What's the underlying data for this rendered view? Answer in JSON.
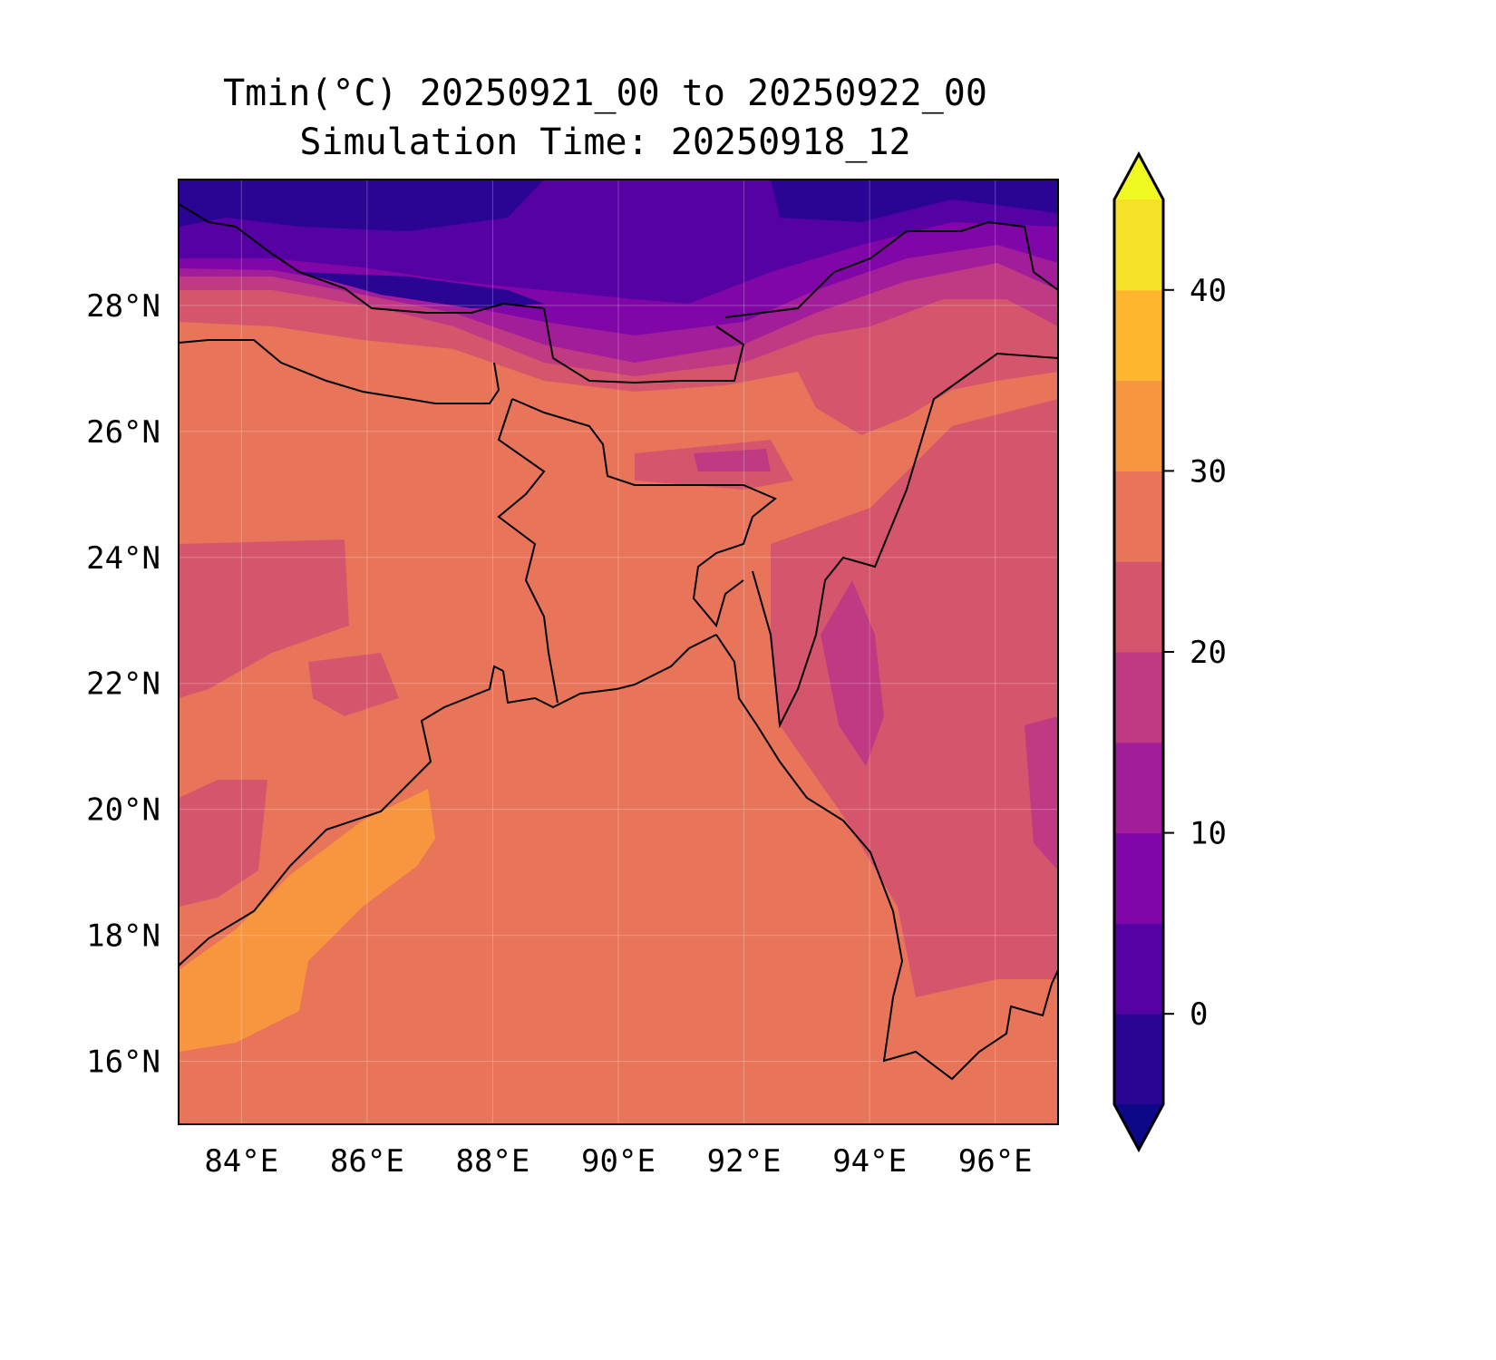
{
  "title": {
    "line1": "Tmin(°C) 20250921_00 to 20250922_00",
    "line2": "Simulation Time: 20250918_12"
  },
  "chart_data": {
    "type": "heatmap",
    "title": "Tmin(°C) 20250921_00 to 20250922_00 / Simulation Time: 20250918_12",
    "extent": {
      "lon": [
        83,
        97
      ],
      "lat": [
        15,
        30
      ]
    },
    "x_ticks": [
      84,
      86,
      88,
      90,
      92,
      94,
      96
    ],
    "x_tick_labels": [
      "84°E",
      "86°E",
      "88°E",
      "90°E",
      "92°E",
      "94°E",
      "96°E"
    ],
    "y_ticks": [
      16,
      18,
      20,
      22,
      24,
      26,
      28
    ],
    "y_tick_labels": [
      "16°N",
      "18°N",
      "20°N",
      "22°N",
      "24°N",
      "26°N",
      "28°N"
    ],
    "grid": true,
    "colorbar": {
      "levels": [
        -5,
        0,
        5,
        10,
        15,
        20,
        25,
        30,
        35,
        40,
        45
      ],
      "colors": [
        "#2a0593",
        "#5601a3",
        "#8006a7",
        "#a21d9a",
        "#bf3a83",
        "#d5566c",
        "#e8755a",
        "#f8963f",
        "#fdb62e",
        "#f5e125"
      ],
      "extend_low_color": "#0d0887",
      "extend_high_color": "#f0f921",
      "ticks": [
        0,
        10,
        20,
        30,
        40
      ],
      "tick_labels": [
        "0",
        "10",
        "20",
        "30",
        "40"
      ],
      "placement": "right"
    },
    "summary": "Bay of Bengal and plains ~25-30°C; SW coastal sea ~30-35°C; Himalaya/Tibet in north -5 to 15°C; Myanmar hills 15-25°C"
  }
}
